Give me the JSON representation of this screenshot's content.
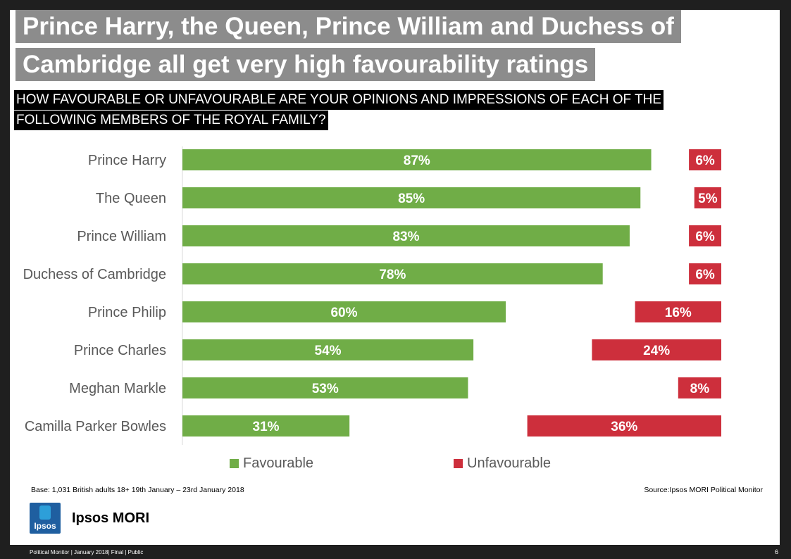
{
  "title": {
    "line1": "Prince Harry, the Queen, Prince William and Duchess of",
    "line2": "Cambridge all get very high favourability ratings"
  },
  "question": {
    "line1": "HOW FAVOURABLE OR UNFAVOURABLE ARE YOUR OPINIONS AND IMPRESSIONS OF EACH OF THE",
    "line2": "FOLLOWING MEMBERS OF THE ROYAL FAMILY?"
  },
  "colors": {
    "favourable": "#70ad47",
    "unfavourable": "#cd2f3c"
  },
  "chart_data": {
    "type": "bar",
    "categories": [
      "Prince Harry",
      "The Queen",
      "Prince William",
      "Duchess of Cambridge",
      "Prince Philip",
      "Prince Charles",
      "Meghan Markle",
      "Camilla Parker Bowles"
    ],
    "series": [
      {
        "name": "Favourable",
        "values": [
          87,
          85,
          83,
          78,
          60,
          54,
          53,
          31
        ]
      },
      {
        "name": "Unfavourable",
        "values": [
          6,
          5,
          6,
          6,
          16,
          24,
          8,
          36
        ]
      }
    ],
    "unit": "%",
    "legend_position": "bottom"
  },
  "legend": {
    "favourable": "Favourable",
    "unfavourable": "Unfavourable"
  },
  "base_note": "Base: 1,031 British adults 18+ 19th January – 23rd January 2018",
  "source_note": "Source:Ipsos MORI Political Monitor",
  "logo": {
    "mark": "Ipsos",
    "name": "Ipsos MORI"
  },
  "footer": {
    "left": "Political Monitor | January 2018| Final | Public",
    "page": "6"
  }
}
